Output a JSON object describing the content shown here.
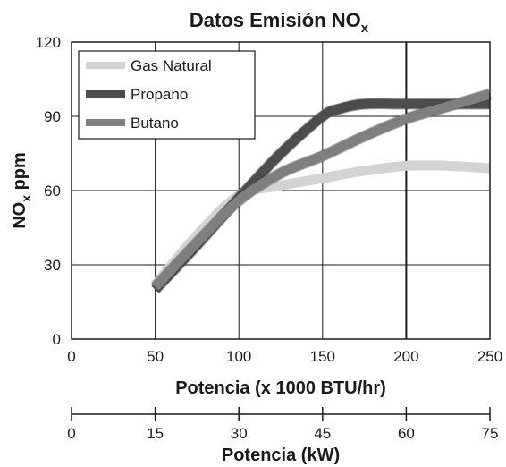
{
  "chart_data": {
    "type": "line",
    "title": {
      "main": "Datos Emisión NO",
      "subscript": "x"
    },
    "ylabel": {
      "main": "NO",
      "subscript": "x",
      "rest": " ppm"
    },
    "xlabel": "Potencia (x 1000 BTU/hr)",
    "xlabel2": "Potencia (kW)",
    "xlim": [
      0,
      250
    ],
    "ylim": [
      0,
      120
    ],
    "xticks": [
      0,
      50,
      100,
      150,
      200,
      250
    ],
    "yticks": [
      0,
      30,
      60,
      90,
      120
    ],
    "x2lim": [
      0,
      75
    ],
    "x2ticks": [
      0,
      15,
      30,
      45,
      60,
      75
    ],
    "grid": true,
    "legend_position": "top-left",
    "series": [
      {
        "name": "Gas Natural",
        "color": "#d3d3d3",
        "x": [
          50,
          75,
          100,
          125,
          150,
          175,
          200,
          225,
          250
        ],
        "y": [
          22,
          42,
          58,
          62,
          65,
          68,
          70,
          70,
          69
        ]
      },
      {
        "name": "Propano",
        "color": "#4d4d4d",
        "x": [
          50,
          75,
          100,
          125,
          150,
          160,
          175,
          200,
          225,
          250
        ],
        "y": [
          20,
          38,
          57,
          75,
          90,
          93,
          95,
          95,
          95,
          95
        ]
      },
      {
        "name": "Butano",
        "color": "#7f7f7f",
        "x": [
          50,
          75,
          100,
          125,
          150,
          175,
          200,
          225,
          250
        ],
        "y": [
          21,
          39,
          56,
          67,
          74,
          82,
          89,
          94,
          99
        ]
      }
    ]
  }
}
